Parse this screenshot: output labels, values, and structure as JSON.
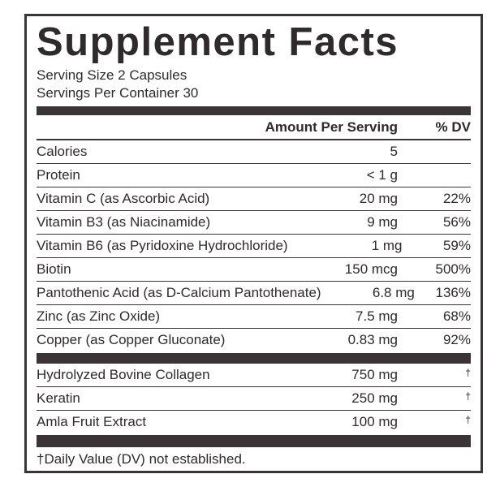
{
  "header": {
    "title": "Supplement Facts",
    "serving_size": "Serving Size 2 Capsules",
    "servings_per_container": "Servings Per Container 30"
  },
  "table": {
    "columns": {
      "amount": "Amount Per Serving",
      "dv": "% DV"
    },
    "sections": [
      {
        "rows": [
          {
            "name": "Calories",
            "amount": "5"
          },
          {
            "name": "Protein",
            "amount": "< 1 g"
          },
          {
            "name": "Vitamin C (as Ascorbic Acid)",
            "amount": "20 mg",
            "dv": "22%"
          },
          {
            "name": "Vitamin B3 (as Niacinamide)",
            "amount": "9 mg",
            "dv": "56%"
          },
          {
            "name": "Vitamin B6 (as Pyridoxine Hydrochloride)",
            "amount": "1 mg",
            "dv": "59%"
          },
          {
            "name": "Biotin",
            "amount": "150 mcg",
            "dv": "500%"
          },
          {
            "name": "Pantothenic Acid (as D-Calcium Pantothenate)",
            "amount": "6.8 mg",
            "dv": "136%"
          },
          {
            "name": "Zinc (as Zinc Oxide)",
            "amount": "7.5 mg",
            "dv": "68%"
          },
          {
            "name": "Copper (as Copper Gluconate)",
            "amount": "0.83 mg",
            "dv": "92%"
          }
        ]
      },
      {
        "rows": [
          {
            "name": "Hydrolyzed Bovine Collagen",
            "amount": "750 mg",
            "dv": "†"
          },
          {
            "name": "Keratin",
            "amount": "250 mg",
            "dv": "†"
          },
          {
            "name": "Amla Fruit Extract",
            "amount": "100 mg",
            "dv": "†"
          }
        ]
      }
    ]
  },
  "footnote": "†Daily Value (DV) not established."
}
